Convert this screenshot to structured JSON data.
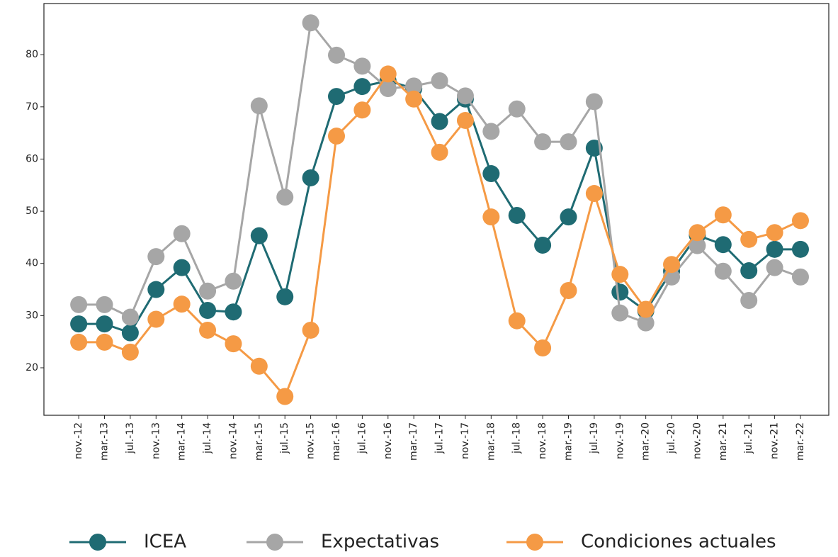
{
  "chart_data": {
    "type": "line",
    "categories": [
      "nov.-12",
      "mar.-13",
      "jul.-13",
      "nov.-13",
      "mar.-14",
      "jul.-14",
      "nov.-14",
      "mar.-15",
      "jul.-15",
      "nov.-15",
      "mar.-16",
      "jul.-16",
      "nov.-16",
      "mar.-17",
      "jul.-17",
      "nov.-17",
      "mar.-18",
      "jul.-18",
      "nov.-18",
      "mar.-19",
      "jul.-19",
      "nov.-19",
      "mar.-20",
      "jul.-20",
      "nov.-20",
      "mar.-21",
      "jul.-21",
      "nov.-21",
      "mar.-22"
    ],
    "series": [
      {
        "name": "ICEA",
        "color": "#1f6b73",
        "values": [
          28.4,
          28.4,
          26.7,
          35,
          39.2,
          31,
          30.7,
          45.3,
          33.6,
          56.4,
          72,
          73.9,
          75,
          73.5,
          67.2,
          71.5,
          57.2,
          49.2,
          43.5,
          48.9,
          62.1,
          34.5,
          30.9,
          38.5,
          45.4,
          43.6,
          38.6,
          42.7,
          42.7
        ]
      },
      {
        "name": "Expectativas",
        "color": "#a6a6a6",
        "values": [
          32.1,
          32.1,
          29.7,
          41.3,
          45.7,
          34.7,
          36.6,
          70.2,
          52.7,
          86.1,
          79.9,
          77.8,
          73.5,
          74,
          75,
          72.1,
          65.3,
          69.6,
          63.3,
          63.3,
          71,
          30.5,
          28.6,
          37.4,
          43.4,
          38.5,
          32.9,
          39.2,
          37.4
        ]
      },
      {
        "name": "Condiciones actuales",
        "color": "#f59a45",
        "values": [
          24.9,
          24.9,
          23,
          29.3,
          32.2,
          27.2,
          24.6,
          20.3,
          14.5,
          27.2,
          64.4,
          69.4,
          76.3,
          71.5,
          61.3,
          67.4,
          48.9,
          29,
          23.8,
          34.8,
          53.4,
          37.9,
          31.2,
          39.8,
          45.9,
          49.3,
          44.6,
          45.9,
          48.2
        ]
      }
    ],
    "ylim": [
      10.9,
      89.8
    ],
    "yticks": [
      20,
      30,
      40,
      50,
      60,
      70,
      80
    ],
    "legend": "bottom"
  }
}
